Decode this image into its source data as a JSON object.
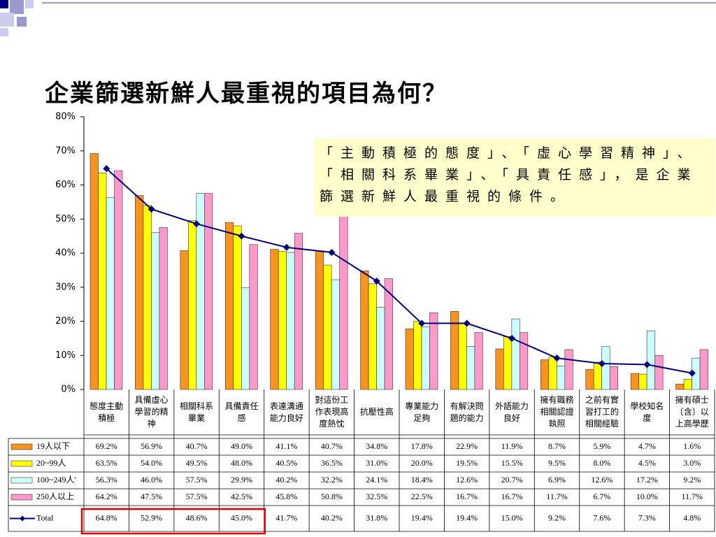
{
  "chart_data": {
    "type": "bar",
    "title": "企業篩選新鮮人最重視的項目為何？",
    "annotation": "「主動積極的態度」、「虛心學習精神」、「相關科系畢業」、「具責任感」，是企業篩選新鮮人最重視的條件。",
    "categories": [
      "態度主動積極",
      "具備虛心學習的精神",
      "相關科系畢業",
      "具備責任感",
      "表達溝通能力良好",
      "對這份工作表現高度熱忱",
      "抗壓性高",
      "專業能力足夠",
      "有解決問題的能力",
      "外語能力良好",
      "擁有職務相關認證執照",
      "之前有實習打工的相關經驗",
      "學校知名度",
      "擁有碩士〔含〕以上高學歷"
    ],
    "ylim": [
      0,
      80
    ],
    "yticks": [
      {
        "value": 0,
        "label": "0%"
      },
      {
        "value": 10,
        "label": "10%"
      },
      {
        "value": 20,
        "label": "20%"
      },
      {
        "value": 30,
        "label": "30%"
      },
      {
        "value": 40,
        "label": "40%"
      },
      {
        "value": 50,
        "label": "50%"
      },
      {
        "value": 60,
        "label": "60%"
      },
      {
        "value": 70,
        "label": "70%"
      },
      {
        "value": 80,
        "label": "80%"
      }
    ],
    "series": [
      {
        "name": "19人以下",
        "color": "#f7931e",
        "type": "bar",
        "values": [
          69.2,
          56.9,
          40.7,
          49.0,
          41.1,
          40.7,
          34.8,
          17.8,
          22.9,
          11.9,
          8.7,
          5.9,
          4.7,
          1.6
        ],
        "value_labels": [
          "69.2%",
          "56.9%",
          "40.7%",
          "49.0%",
          "41.1%",
          "40.7%",
          "34.8%",
          "17.8%",
          "22.9%",
          "11.9%",
          "8.7%",
          "5.9%",
          "4.7%",
          "1.6%"
        ]
      },
      {
        "name": "20~99人",
        "color": "#ffff00",
        "type": "bar",
        "values": [
          63.5,
          54.0,
          49.5,
          48.0,
          40.5,
          36.5,
          31.0,
          20.0,
          19.5,
          15.5,
          9.5,
          8.0,
          4.5,
          3.0
        ],
        "value_labels": [
          "63.5%",
          "54.0%",
          "49.5%",
          "48.0%",
          "40.5%",
          "36.5%",
          "31.0%",
          "20.0%",
          "19.5%",
          "15.5%",
          "9.5%",
          "8.0%",
          "4.5%",
          "3.0%"
        ]
      },
      {
        "name": "100~249人'",
        "color": "#ccffff",
        "type": "bar",
        "values": [
          56.3,
          46.0,
          57.5,
          29.9,
          40.2,
          32.2,
          24.1,
          18.4,
          12.6,
          20.7,
          6.9,
          12.6,
          17.2,
          9.2
        ],
        "value_labels": [
          "56.3%",
          "46.0%",
          "57.5%",
          "29.9%",
          "40.2%",
          "32.2%",
          "24.1%",
          "18.4%",
          "12.6%",
          "20.7%",
          "6.9%",
          "12.6%",
          "17.2%",
          "9.2%"
        ]
      },
      {
        "name": "250人以上",
        "color": "#ff99cc",
        "type": "bar",
        "values": [
          64.2,
          47.5,
          57.5,
          42.5,
          45.8,
          50.8,
          32.5,
          22.5,
          16.7,
          16.7,
          11.7,
          6.7,
          10.0,
          11.7
        ],
        "value_labels": [
          "64.2%",
          "47.5%",
          "57.5%",
          "42.5%",
          "45.8%",
          "50.8%",
          "32.5%",
          "22.5%",
          "16.7%",
          "16.7%",
          "11.7%",
          "6.7%",
          "10.0%",
          "11.7%"
        ]
      },
      {
        "name": "Total",
        "color": "#000080",
        "type": "line",
        "values": [
          64.8,
          52.9,
          48.6,
          45.0,
          41.7,
          40.2,
          31.8,
          19.4,
          19.4,
          15.0,
          9.2,
          7.6,
          7.3,
          4.8
        ],
        "value_labels": [
          "64.8%",
          "52.9%",
          "48.6%",
          "45.0%",
          "41.7%",
          "40.2%",
          "31.8%",
          "19.4%",
          "19.4%",
          "15.0%",
          "9.2%",
          "7.6%",
          "7.3%",
          "4.8%"
        ]
      }
    ]
  }
}
